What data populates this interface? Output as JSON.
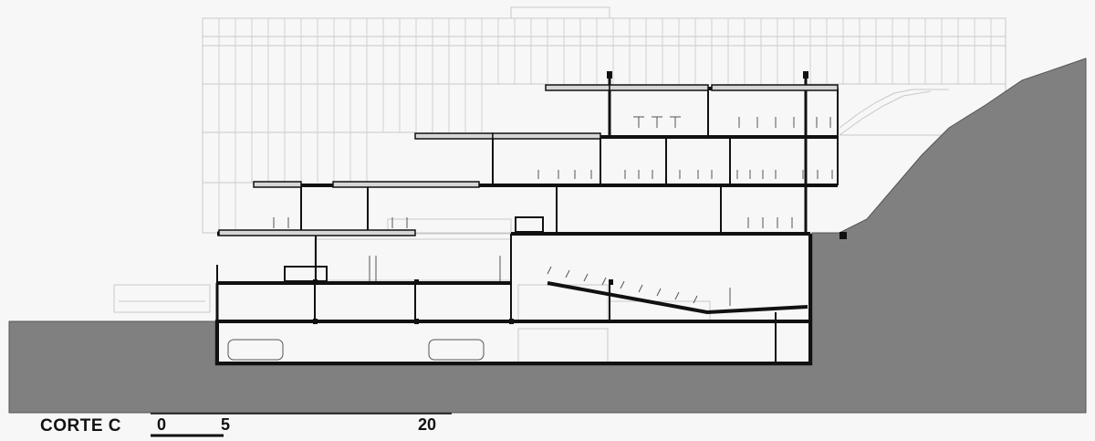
{
  "drawing": {
    "title": "CORTE C",
    "scale_bar": {
      "ticks": [
        "0",
        "5",
        "20"
      ]
    },
    "colors": {
      "terrain": "#808080",
      "section": "#111111",
      "elevation": "#c8c8c8",
      "slab_fill": "#d6d6d6",
      "background": "#f7f7f7"
    }
  }
}
